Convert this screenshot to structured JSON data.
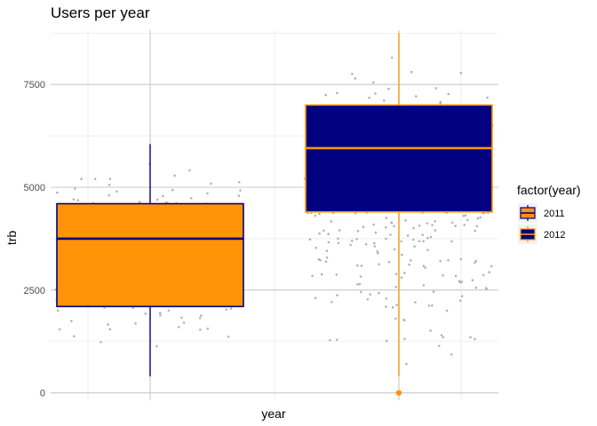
{
  "chart_data": {
    "type": "boxplot",
    "title": "Users per year",
    "xlabel": "year",
    "ylabel": "trb",
    "ylim": [
      -180,
      8820
    ],
    "xlim": [
      2010.6,
      2012.4
    ],
    "grid": true,
    "legend": {
      "title": "factor(year)",
      "position": "right",
      "entries": [
        "2011",
        "2012"
      ]
    },
    "yticks": [
      0,
      2500,
      5000,
      7500
    ],
    "y_tick_labels": [
      "0",
      "2500",
      "5000",
      "7500"
    ],
    "x_tick_labels": [],
    "colors": {
      "orange": "#FF9408",
      "navy": "#010080",
      "points": "#B3B3B3",
      "grid_major": "#C8C8C8",
      "grid_minor": "#E3E3E3"
    },
    "series": [
      {
        "name": "2011",
        "x": 2011,
        "whisker_low": 400,
        "q1": 2100,
        "median": 3750,
        "q3": 4600,
        "whisker_high": 6050,
        "fill": "#FF9408",
        "line": "#010080",
        "outliers": []
      },
      {
        "name": "2012",
        "x": 2012,
        "whisker_low": 400,
        "q1": 4400,
        "median": 5950,
        "q3": 7000,
        "whisker_high": 8750,
        "fill": "#010080",
        "line": "#FF9408",
        "outliers": [
          0
        ]
      }
    ],
    "jitter": {
      "n_per_group": 280,
      "width": 0.38,
      "min": [
        700,
        100
      ],
      "max": [
        6100,
        8750
      ]
    }
  }
}
